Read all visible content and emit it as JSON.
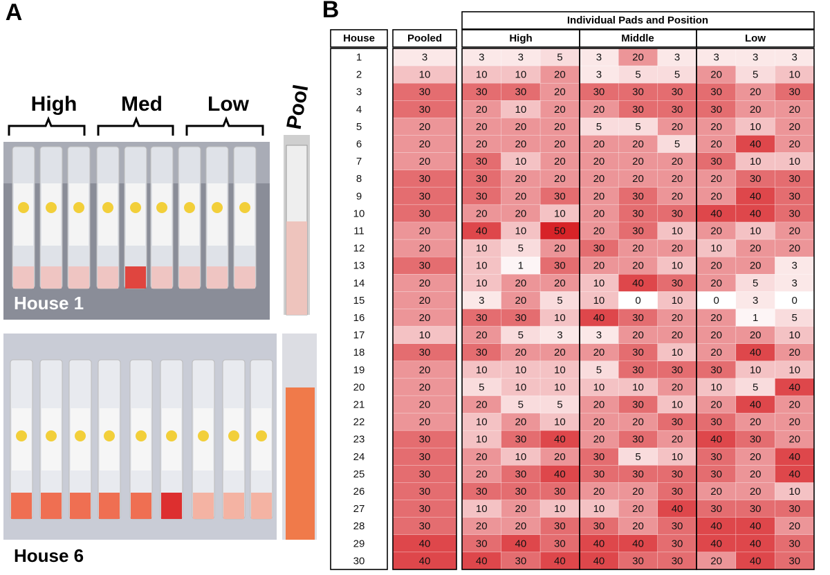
{
  "panel_a": {
    "label": "A",
    "positions": [
      "High",
      "Med",
      "Low"
    ],
    "pool": "Pool",
    "photos": [
      "House 1",
      "House 6"
    ]
  },
  "panel_b": {
    "label": "B",
    "header": {
      "house": "House",
      "pooled": "Pooled",
      "individual": "Individual Pads and Position",
      "positions": [
        "High",
        "Middle",
        "Low"
      ]
    },
    "rows": [
      [
        1,
        3,
        3,
        3,
        5,
        3,
        20,
        3,
        3,
        3,
        3
      ],
      [
        2,
        10,
        10,
        10,
        20,
        3,
        5,
        5,
        20,
        5,
        10
      ],
      [
        3,
        30,
        30,
        30,
        20,
        30,
        30,
        30,
        30,
        20,
        30
      ],
      [
        4,
        30,
        20,
        10,
        20,
        20,
        30,
        30,
        30,
        20,
        20
      ],
      [
        5,
        20,
        20,
        20,
        20,
        5,
        5,
        20,
        20,
        10,
        20
      ],
      [
        6,
        20,
        20,
        20,
        20,
        20,
        20,
        5,
        20,
        40,
        20
      ],
      [
        7,
        20,
        30,
        10,
        20,
        20,
        20,
        20,
        30,
        10,
        10
      ],
      [
        8,
        30,
        30,
        20,
        20,
        20,
        20,
        20,
        20,
        30,
        30
      ],
      [
        9,
        30,
        30,
        20,
        30,
        20,
        30,
        20,
        20,
        40,
        30
      ],
      [
        10,
        30,
        20,
        20,
        10,
        20,
        30,
        30,
        40,
        40,
        30
      ],
      [
        11,
        20,
        40,
        10,
        50,
        20,
        30,
        10,
        20,
        10,
        20
      ],
      [
        12,
        20,
        10,
        5,
        20,
        30,
        20,
        20,
        10,
        20,
        20
      ],
      [
        13,
        30,
        10,
        1,
        30,
        20,
        20,
        10,
        20,
        20,
        3
      ],
      [
        14,
        20,
        10,
        20,
        20,
        10,
        40,
        30,
        20,
        5,
        3
      ],
      [
        15,
        20,
        3,
        20,
        5,
        10,
        0,
        10,
        0,
        3,
        0
      ],
      [
        16,
        20,
        30,
        30,
        10,
        40,
        30,
        20,
        20,
        1,
        5
      ],
      [
        17,
        10,
        20,
        5,
        3,
        3,
        20,
        20,
        20,
        20,
        10
      ],
      [
        18,
        30,
        30,
        20,
        20,
        20,
        30,
        10,
        20,
        40,
        20
      ],
      [
        19,
        20,
        10,
        10,
        10,
        5,
        30,
        30,
        30,
        10,
        10
      ],
      [
        20,
        20,
        5,
        10,
        10,
        10,
        10,
        20,
        10,
        5,
        40
      ],
      [
        21,
        20,
        20,
        5,
        5,
        20,
        30,
        10,
        20,
        40,
        20
      ],
      [
        22,
        20,
        10,
        20,
        10,
        20,
        20,
        30,
        30,
        20,
        20
      ],
      [
        23,
        30,
        10,
        30,
        40,
        20,
        30,
        20,
        40,
        30,
        20
      ],
      [
        24,
        30,
        20,
        10,
        20,
        30,
        5,
        10,
        30,
        20,
        40
      ],
      [
        25,
        30,
        20,
        30,
        40,
        30,
        30,
        30,
        30,
        20,
        40
      ],
      [
        26,
        30,
        30,
        30,
        30,
        20,
        20,
        30,
        20,
        20,
        10
      ],
      [
        27,
        30,
        10,
        20,
        10,
        10,
        20,
        40,
        30,
        30,
        30
      ],
      [
        28,
        30,
        20,
        20,
        30,
        30,
        20,
        30,
        40,
        40,
        20
      ],
      [
        29,
        40,
        30,
        40,
        30,
        40,
        40,
        30,
        40,
        40,
        30
      ],
      [
        30,
        40,
        40,
        30,
        40,
        40,
        30,
        30,
        20,
        40,
        30
      ]
    ]
  }
}
